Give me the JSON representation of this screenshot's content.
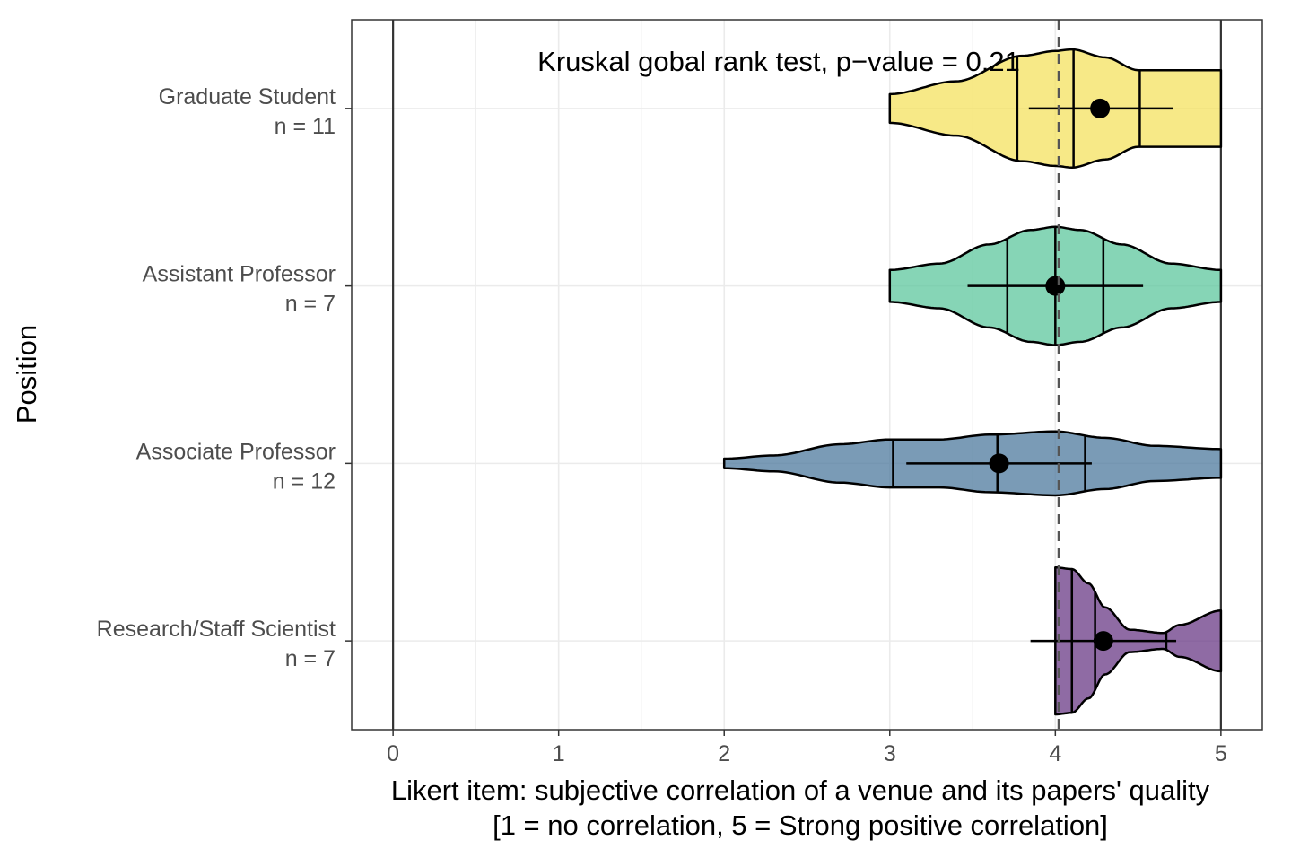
{
  "chart_data": {
    "type": "violin",
    "annotation": "Kruskal gobal rank test, p−value  = 0.21",
    "xlabel_line1": "Likert item: subjective correlation of a venue and its papers' quality",
    "xlabel_line2": "[1 = no correlation, 5 = Strong positive correlation]",
    "ylabel": "Position",
    "xlim": [
      -0.25,
      5.25
    ],
    "x_ticks": [
      "0",
      "1",
      "2",
      "3",
      "4",
      "5"
    ],
    "grid": true,
    "overall_mean_line": 4.02,
    "boundary_lines": [
      0,
      5
    ],
    "categories": [
      {
        "label": "Graduate Student",
        "n_label": "n = 11",
        "color": "#F4E15F",
        "mean": 4.27,
        "ci_low": 3.84,
        "ci_high": 4.71,
        "quantiles": [
          3.77,
          4.11,
          4.51
        ],
        "density": [
          [
            3.0,
            0.09
          ],
          [
            3.4,
            0.17
          ],
          [
            3.8,
            0.33
          ],
          [
            4.0,
            0.36
          ],
          [
            4.1,
            0.37
          ],
          [
            4.3,
            0.32
          ],
          [
            4.5,
            0.24
          ],
          [
            4.8,
            0.24
          ],
          [
            5.0,
            0.24
          ]
        ]
      },
      {
        "label": "Assistant Professor",
        "n_label": "n = 7",
        "color": "#5DC79E",
        "mean": 4.0,
        "ci_low": 3.47,
        "ci_high": 4.53,
        "quantiles": [
          3.71,
          4.0,
          4.29
        ],
        "density": [
          [
            3.0,
            0.1
          ],
          [
            3.3,
            0.14
          ],
          [
            3.6,
            0.26
          ],
          [
            3.85,
            0.35
          ],
          [
            4.0,
            0.37
          ],
          [
            4.15,
            0.35
          ],
          [
            4.4,
            0.26
          ],
          [
            4.7,
            0.14
          ],
          [
            5.0,
            0.1
          ]
        ]
      },
      {
        "label": "Associate Professor",
        "n_label": "n = 12",
        "color": "#4E7A9E",
        "mean": 3.66,
        "ci_low": 3.1,
        "ci_high": 4.22,
        "quantiles": [
          3.02,
          3.65,
          4.18
        ],
        "density": [
          [
            2.0,
            0.03
          ],
          [
            2.3,
            0.05
          ],
          [
            2.7,
            0.12
          ],
          [
            3.0,
            0.15
          ],
          [
            3.3,
            0.15
          ],
          [
            3.6,
            0.18
          ],
          [
            4.0,
            0.2
          ],
          [
            4.3,
            0.16
          ],
          [
            4.6,
            0.11
          ],
          [
            5.0,
            0.09
          ]
        ]
      },
      {
        "label": "Research/Staff Scientist",
        "n_label": "n = 7",
        "color": "#6A3A86",
        "mean": 4.29,
        "ci_low": 3.85,
        "ci_high": 4.73,
        "quantiles": [
          4.1,
          4.24,
          4.67
        ],
        "density": [
          [
            4.0,
            0.46
          ],
          [
            4.1,
            0.45
          ],
          [
            4.2,
            0.36
          ],
          [
            4.3,
            0.21
          ],
          [
            4.45,
            0.07
          ],
          [
            4.65,
            0.05
          ],
          [
            4.75,
            0.1
          ],
          [
            5.0,
            0.19
          ]
        ]
      }
    ]
  }
}
